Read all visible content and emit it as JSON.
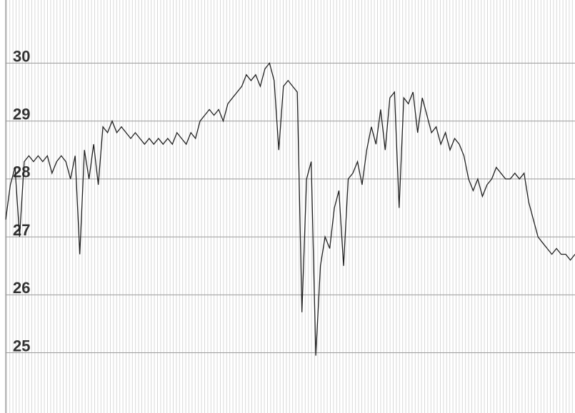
{
  "chart_data": {
    "type": "line",
    "color": "#222222",
    "values": [
      27.3,
      27.9,
      28.2,
      27.0,
      28.3,
      28.4,
      28.3,
      28.4,
      28.3,
      28.4,
      28.1,
      28.3,
      28.4,
      28.3,
      28.0,
      28.4,
      26.7,
      28.5,
      28.0,
      28.6,
      27.9,
      28.9,
      28.8,
      29.0,
      28.8,
      28.9,
      28.8,
      28.7,
      28.8,
      28.7,
      28.6,
      28.7,
      28.6,
      28.7,
      28.6,
      28.7,
      28.6,
      28.8,
      28.7,
      28.6,
      28.8,
      28.7,
      29.0,
      29.1,
      29.2,
      29.1,
      29.2,
      29.0,
      29.3,
      29.4,
      29.5,
      29.6,
      29.8,
      29.7,
      29.8,
      29.6,
      29.9,
      30.0,
      29.7,
      28.5,
      29.6,
      29.7,
      29.6,
      29.5,
      25.7,
      28.0,
      28.3,
      24.95,
      26.5,
      27.0,
      26.8,
      27.5,
      27.8,
      26.5,
      28.0,
      28.1,
      28.3,
      27.9,
      28.5,
      28.9,
      28.6,
      29.2,
      28.5,
      29.4,
      29.5,
      27.5,
      29.4,
      29.3,
      29.5,
      28.8,
      29.4,
      29.1,
      28.8,
      28.9,
      28.6,
      28.8,
      28.5,
      28.7,
      28.6,
      28.4,
      28.0,
      27.8,
      28.0,
      27.7,
      27.9,
      28.0,
      28.2,
      28.1,
      28.0,
      28.0,
      28.1,
      28.0,
      28.1,
      27.6,
      27.3,
      27.0,
      26.9,
      26.8,
      26.7,
      26.8,
      26.7,
      26.7,
      26.6,
      26.7
    ],
    "ylim": [
      23.96,
      31.09
    ],
    "yticks": [
      25,
      26,
      27,
      28,
      29,
      30
    ],
    "grid": true
  }
}
